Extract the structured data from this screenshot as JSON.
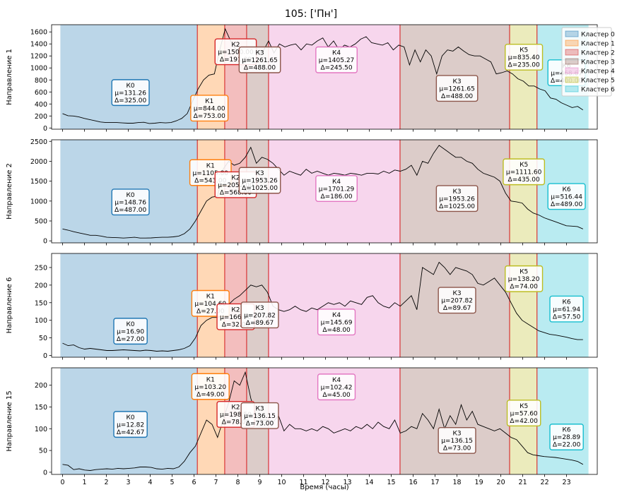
{
  "title": "105: ['Пн']",
  "xlabel": "Время (часы)",
  "legend": {
    "placement": "top-right",
    "items": [
      {
        "label": "Кластер 0",
        "color": "#1f77b4"
      },
      {
        "label": "Кластер 1",
        "color": "#ff7f0e"
      },
      {
        "label": "Кластер 2",
        "color": "#d62728"
      },
      {
        "label": "Кластер 3",
        "color": "#8c564b"
      },
      {
        "label": "Кластер 4",
        "color": "#e377c2"
      },
      {
        "label": "Кластер 5",
        "color": "#bcbd22"
      },
      {
        "label": "Кластер 6",
        "color": "#17becf"
      }
    ]
  },
  "chart_data": {
    "type": "line",
    "x_ticks": [
      0,
      1,
      2,
      3,
      4,
      5,
      6,
      7,
      8,
      9,
      10,
      11,
      12,
      13,
      14,
      15,
      16,
      17,
      18,
      19,
      20,
      21,
      22,
      23
    ],
    "xlim": [
      -0.5,
      24.4
    ],
    "segments": [
      {
        "start": -0.1,
        "end": 6.15,
        "cluster": 0
      },
      {
        "start": 6.15,
        "end": 7.4,
        "cluster": 1
      },
      {
        "start": 7.4,
        "end": 8.4,
        "cluster": 2
      },
      {
        "start": 8.4,
        "end": 9.4,
        "cluster": 3
      },
      {
        "start": 9.4,
        "end": 15.4,
        "cluster": 4
      },
      {
        "start": 15.4,
        "end": 20.4,
        "cluster": 3
      },
      {
        "start": 20.4,
        "end": 21.65,
        "cluster": 5
      },
      {
        "start": 21.65,
        "end": 24.0,
        "cluster": 6
      }
    ],
    "boundaries": [
      6.15,
      7.4,
      8.4,
      9.4,
      15.4,
      20.4,
      21.65
    ],
    "panels": [
      {
        "ylabel": "Направление 1",
        "ylim": [
          -20,
          1720
        ],
        "yticks": [
          0,
          200,
          400,
          600,
          800,
          1000,
          1200,
          1400,
          1600
        ],
        "values": [
          240,
          205,
          200,
          185,
          160,
          140,
          120,
          100,
          90,
          90,
          90,
          85,
          80,
          80,
          90,
          95,
          75,
          80,
          90,
          85,
          90,
          120,
          160,
          240,
          450,
          650,
          800,
          880,
          900,
          1300,
          1650,
          1450,
          1300,
          1200,
          1350,
          1200,
          1250,
          1280,
          1450,
          1250,
          1400,
          1350,
          1380,
          1400,
          1300,
          1400,
          1380,
          1450,
          1500,
          1350,
          1450,
          1300,
          1380,
          1350,
          1400,
          1480,
          1520,
          1420,
          1400,
          1380,
          1420,
          1300,
          1380,
          1350,
          1050,
          1300,
          1100,
          1300,
          1200,
          900,
          1200,
          1300,
          1280,
          1350,
          1280,
          1220,
          1200,
          1200,
          1150,
          1100,
          900,
          920,
          950,
          900,
          820,
          780,
          700,
          700,
          650,
          620,
          500,
          480,
          420,
          380,
          340,
          360,
          300
        ],
        "labels": [
          {
            "text": "К0\nμ=131.26\nΔ=325.00",
            "x": 3.1,
            "y": 590,
            "cluster": 0
          },
          {
            "text": "К1\nμ=844.00\nΔ=753.00",
            "x": 6.7,
            "y": 330,
            "cluster": 1
          },
          {
            "text": "К2\nμ=1500.00\nΔ=191.00",
            "x": 7.9,
            "y": 1270,
            "cluster": 2
          },
          {
            "text": "К3\nμ=1261.65\nΔ=488.00",
            "x": 9.0,
            "y": 1135,
            "cluster": 3
          },
          {
            "text": "К4\nμ=1405.27\nΔ=245.50",
            "x": 12.5,
            "y": 1135,
            "cluster": 4
          },
          {
            "text": "К3\nμ=1261.65\nΔ=488.00",
            "x": 18.0,
            "y": 660,
            "cluster": 3
          },
          {
            "text": "К5\nμ=835.40\nΔ=235.00",
            "x": 21.05,
            "y": 1180,
            "cluster": 5
          },
          {
            "text": "К6\nμ=468.67\nΔ=400.00",
            "x": 23.0,
            "y": 920,
            "cluster": 6
          }
        ]
      },
      {
        "ylabel": "Направление 2",
        "ylim": [
          -50,
          2540
        ],
        "yticks": [
          0,
          500,
          1000,
          1500,
          2000,
          2500
        ],
        "values": [
          300,
          270,
          230,
          200,
          170,
          140,
          140,
          120,
          90,
          85,
          80,
          70,
          80,
          90,
          70,
          70,
          75,
          85,
          90,
          90,
          100,
          120,
          180,
          300,
          500,
          750,
          1000,
          1100,
          1120,
          1800,
          2000,
          1900,
          1950,
          2100,
          2350,
          1950,
          2100,
          2050,
          1950,
          1800,
          1650,
          1750,
          1700,
          1650,
          1800,
          1700,
          1750,
          1700,
          1650,
          1700,
          1680,
          1650,
          1700,
          1680,
          1650,
          1700,
          1700,
          1680,
          1750,
          1700,
          1780,
          1750,
          1800,
          1900,
          1650,
          2000,
          1950,
          2200,
          2400,
          2300,
          2200,
          2100,
          2100,
          2000,
          1950,
          1800,
          1700,
          1650,
          1600,
          1500,
          1200,
          1000,
          980,
          950,
          800,
          700,
          650,
          580,
          530,
          480,
          430,
          380,
          370,
          360,
          300
        ],
        "labels": [
          {
            "text": "К0\nμ=148.76\nΔ=487.00",
            "x": 3.1,
            "y": 975,
            "cluster": 0
          },
          {
            "text": "К1\nμ=1105.80\nΔ=543.00",
            "x": 6.75,
            "y": 1715,
            "cluster": 1
          },
          {
            "text": "К2\nμ=2052.00\nΔ=568.00",
            "x": 7.9,
            "y": 1410,
            "cluster": 2
          },
          {
            "text": "К3\nμ=1953.26\nΔ=1025.00",
            "x": 9.0,
            "y": 1520,
            "cluster": 3
          },
          {
            "text": "К4\nμ=1701.29\nΔ=186.00",
            "x": 12.5,
            "y": 1315,
            "cluster": 4
          },
          {
            "text": "К3\nμ=1953.26\nΔ=1025.00",
            "x": 18.0,
            "y": 1065,
            "cluster": 3
          },
          {
            "text": "К5\nμ=1111.60\nΔ=435.00",
            "x": 21.05,
            "y": 1735,
            "cluster": 5
          },
          {
            "text": "К6\nμ=516.44\nΔ=489.00",
            "x": 23.0,
            "y": 1115,
            "cluster": 6
          }
        ]
      },
      {
        "ylabel": "Направление 6",
        "ylim": [
          -5,
          290
        ],
        "yticks": [
          0,
          50,
          100,
          150,
          200,
          250
        ],
        "values": [
          35,
          28,
          30,
          22,
          18,
          20,
          18,
          16,
          14,
          14,
          15,
          16,
          15,
          14,
          13,
          15,
          14,
          12,
          13,
          12,
          14,
          16,
          20,
          28,
          50,
          85,
          100,
          108,
          108,
          115,
          145,
          160,
          170,
          185,
          200,
          195,
          200,
          180,
          140,
          130,
          125,
          130,
          140,
          130,
          125,
          135,
          130,
          140,
          150,
          145,
          150,
          140,
          155,
          150,
          145,
          165,
          170,
          150,
          140,
          135,
          150,
          140,
          155,
          170,
          130,
          250,
          240,
          230,
          265,
          250,
          230,
          250,
          245,
          240,
          230,
          205,
          200,
          210,
          220,
          200,
          180,
          150,
          120,
          100,
          90,
          80,
          70,
          65,
          60,
          58,
          55,
          52,
          48,
          45,
          45
        ],
        "labels": [
          {
            "text": "К0\nμ=16.90\nΔ=27.00",
            "x": 3.1,
            "y": 69,
            "cluster": 0
          },
          {
            "text": "К1\nμ=104.60\nΔ=27.00",
            "x": 6.75,
            "y": 148,
            "cluster": 1
          },
          {
            "text": "К2\nμ=166.36\nΔ=32.00",
            "x": 7.9,
            "y": 110,
            "cluster": 2
          },
          {
            "text": "К3\nμ=207.82\nΔ=89.67",
            "x": 9.0,
            "y": 115,
            "cluster": 3
          },
          {
            "text": "К4\nμ=145.69\nΔ=48.00",
            "x": 12.5,
            "y": 95,
            "cluster": 4
          },
          {
            "text": "К3\nμ=207.82\nΔ=89.67",
            "x": 18.0,
            "y": 157,
            "cluster": 3
          },
          {
            "text": "К5\nμ=138.20\nΔ=74.00",
            "x": 21.05,
            "y": 218,
            "cluster": 5
          },
          {
            "text": "К6\nμ=61.94\nΔ=57.50",
            "x": 23.0,
            "y": 132,
            "cluster": 6
          }
        ]
      },
      {
        "ylabel": "Направление 15",
        "ylim": [
          -5,
          240
        ],
        "yticks": [
          0,
          50,
          100,
          150,
          200
        ],
        "values": [
          18,
          16,
          6,
          8,
          5,
          4,
          6,
          7,
          8,
          7,
          9,
          8,
          9,
          10,
          12,
          12,
          11,
          8,
          7,
          9,
          8,
          12,
          25,
          45,
          60,
          90,
          120,
          110,
          80,
          120,
          160,
          210,
          200,
          230,
          170,
          130,
          120,
          120,
          115,
          130,
          95,
          110,
          100,
          100,
          95,
          100,
          95,
          105,
          100,
          90,
          95,
          100,
          95,
          105,
          100,
          110,
          100,
          115,
          105,
          100,
          120,
          90,
          95,
          105,
          100,
          135,
          120,
          100,
          145,
          100,
          130,
          110,
          155,
          120,
          140,
          110,
          105,
          100,
          95,
          100,
          90,
          80,
          75,
          60,
          45,
          40,
          38,
          36,
          35,
          34,
          32,
          30,
          28,
          25,
          18
        ],
        "labels": [
          {
            "text": "К0\nμ=12.82\nΔ=42.67",
            "x": 3.1,
            "y": 110,
            "cluster": 0
          },
          {
            "text": "К1\nμ=103.20\nΔ=49.00",
            "x": 6.75,
            "y": 197,
            "cluster": 1
          },
          {
            "text": "К2\nμ=198.50\nΔ=78.00",
            "x": 7.9,
            "y": 133,
            "cluster": 2
          },
          {
            "text": "К3\nμ=136.15\nΔ=73.00",
            "x": 9.0,
            "y": 130,
            "cluster": 3
          },
          {
            "text": "К4\nμ=102.42\nΔ=45.00",
            "x": 12.5,
            "y": 196,
            "cluster": 4
          },
          {
            "text": "К3\nμ=136.15\nΔ=73.00",
            "x": 18.0,
            "y": 73,
            "cluster": 3
          },
          {
            "text": "К5\nμ=57.60\nΔ=42.00",
            "x": 21.05,
            "y": 136,
            "cluster": 5
          },
          {
            "text": "К6\nμ=28.89\nΔ=22.00",
            "x": 23.0,
            "y": 81,
            "cluster": 6
          }
        ]
      }
    ]
  }
}
